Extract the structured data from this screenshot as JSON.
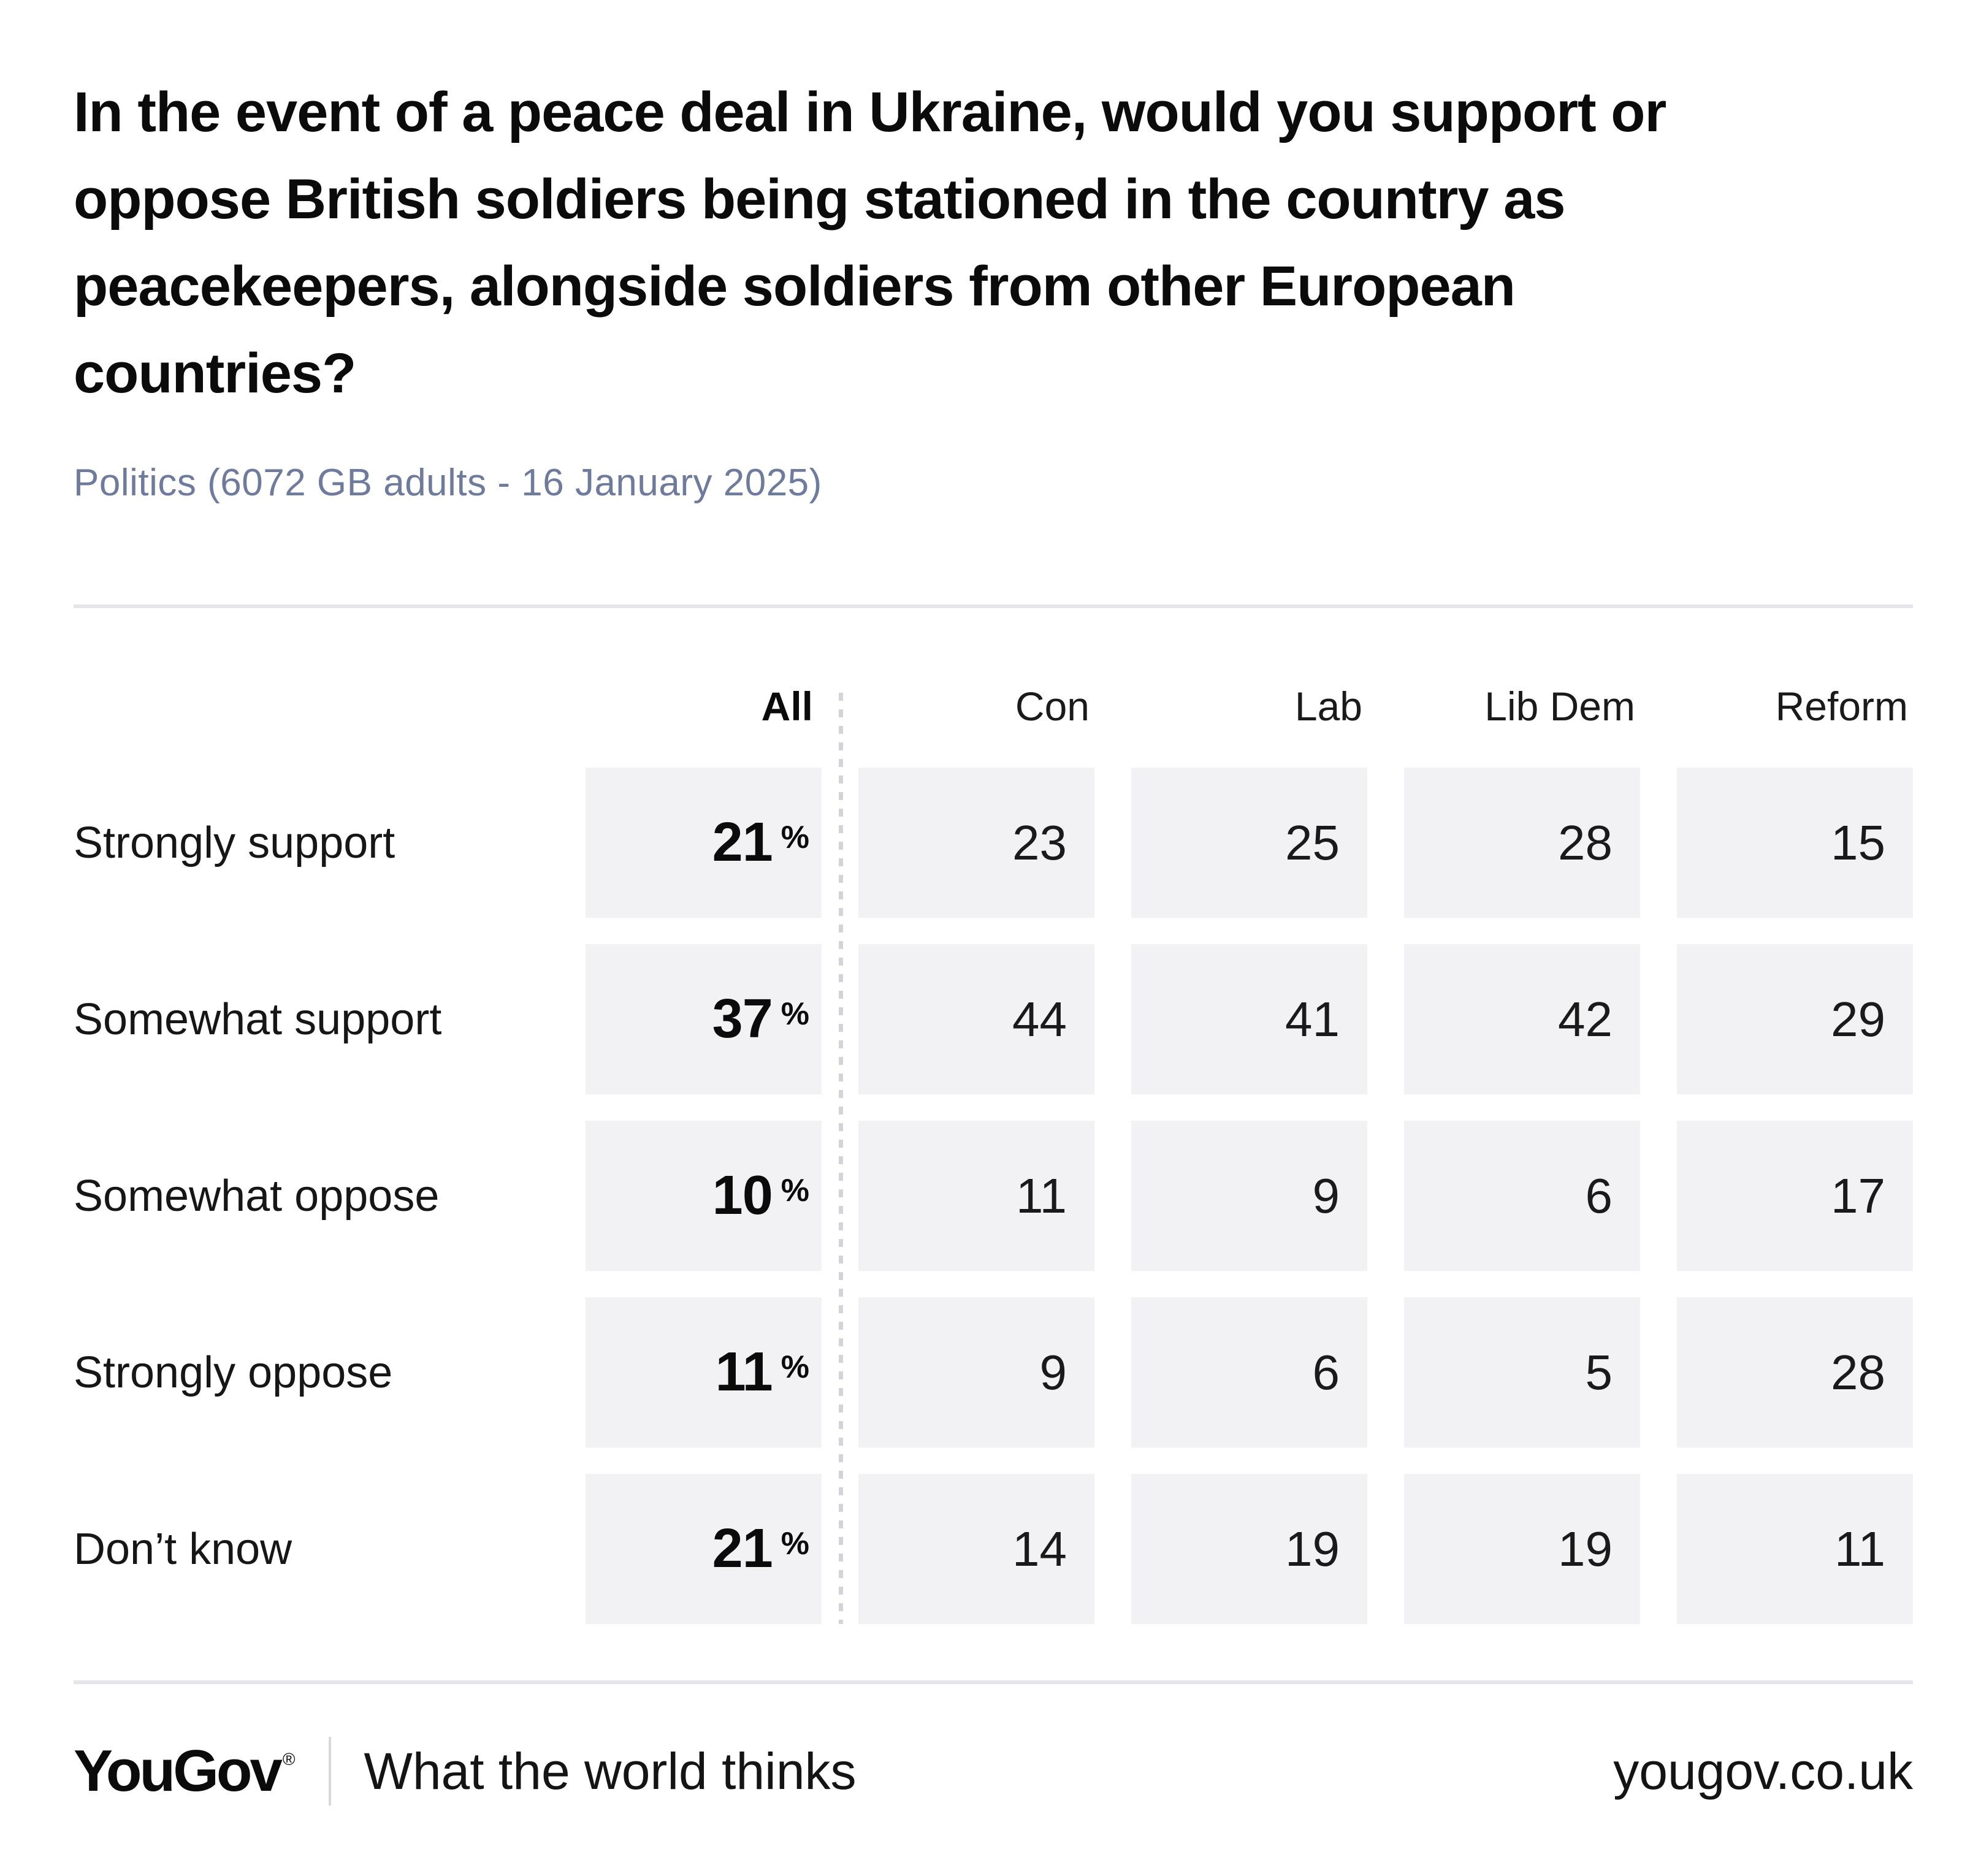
{
  "page": {
    "title_lines": [
      "In the event of a peace deal in Ukraine, would you support or",
      "oppose British soldiers being stationed in the country as",
      "peacekeepers, alongside soldiers from other European",
      "countries?"
    ],
    "subtitle": "Politics (6072 GB adults - 16 January 2025)"
  },
  "chart_data": {
    "type": "table",
    "title": "In the event of a peace deal in Ukraine, would you support or oppose British soldiers being stationed in the country as peacekeepers, alongside soldiers from other European countries?",
    "subtitle": "Politics (6072 GB adults - 16 January 2025)",
    "unit": "%",
    "columns": [
      "All",
      "Con",
      "Lab",
      "Lib Dem",
      "Reform"
    ],
    "rows": [
      {
        "label": "Strongly support",
        "values": [
          21,
          23,
          25,
          28,
          15
        ]
      },
      {
        "label": "Somewhat support",
        "values": [
          37,
          44,
          41,
          42,
          29
        ]
      },
      {
        "label": "Somewhat oppose",
        "values": [
          10,
          11,
          9,
          6,
          17
        ]
      },
      {
        "label": "Strongly oppose",
        "values": [
          11,
          9,
          6,
          5,
          28
        ]
      },
      {
        "label": "Don’t know",
        "values": [
          21,
          14,
          19,
          19,
          11
        ]
      }
    ]
  },
  "footer": {
    "logo": "YouGov",
    "registered": "®",
    "tagline": "What the world thinks",
    "url": "yougov.co.uk"
  },
  "colors": {
    "background": "#ffffff",
    "title_text": "#0b0b0b",
    "subtitle_text": "#6e7b9c",
    "body_text": "#1a1a1a",
    "cell_background": "#f2f2f4",
    "divider": "#e5e5ea",
    "dashed_separator": "#d3d3da"
  }
}
